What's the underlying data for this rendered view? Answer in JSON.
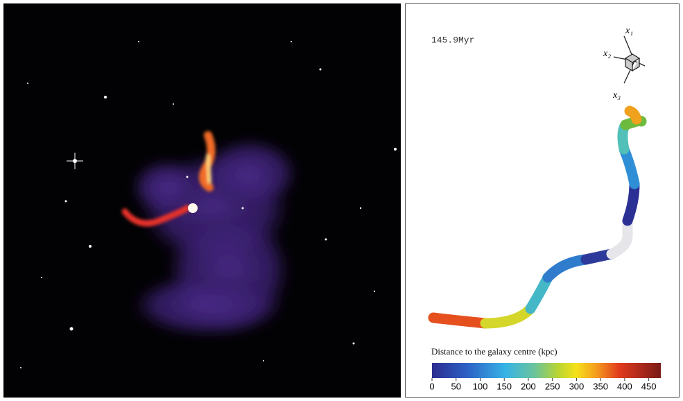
{
  "time_label": "145.9Myr",
  "axes_labels": [
    "x₁",
    "x₂",
    "x₃"
  ],
  "colorbar": {
    "title": "Distance to the galaxy centre (kpc)",
    "range": [
      0,
      475
    ],
    "ticks": [
      0,
      50,
      100,
      150,
      200,
      250,
      300,
      350,
      400,
      450
    ]
  }
}
